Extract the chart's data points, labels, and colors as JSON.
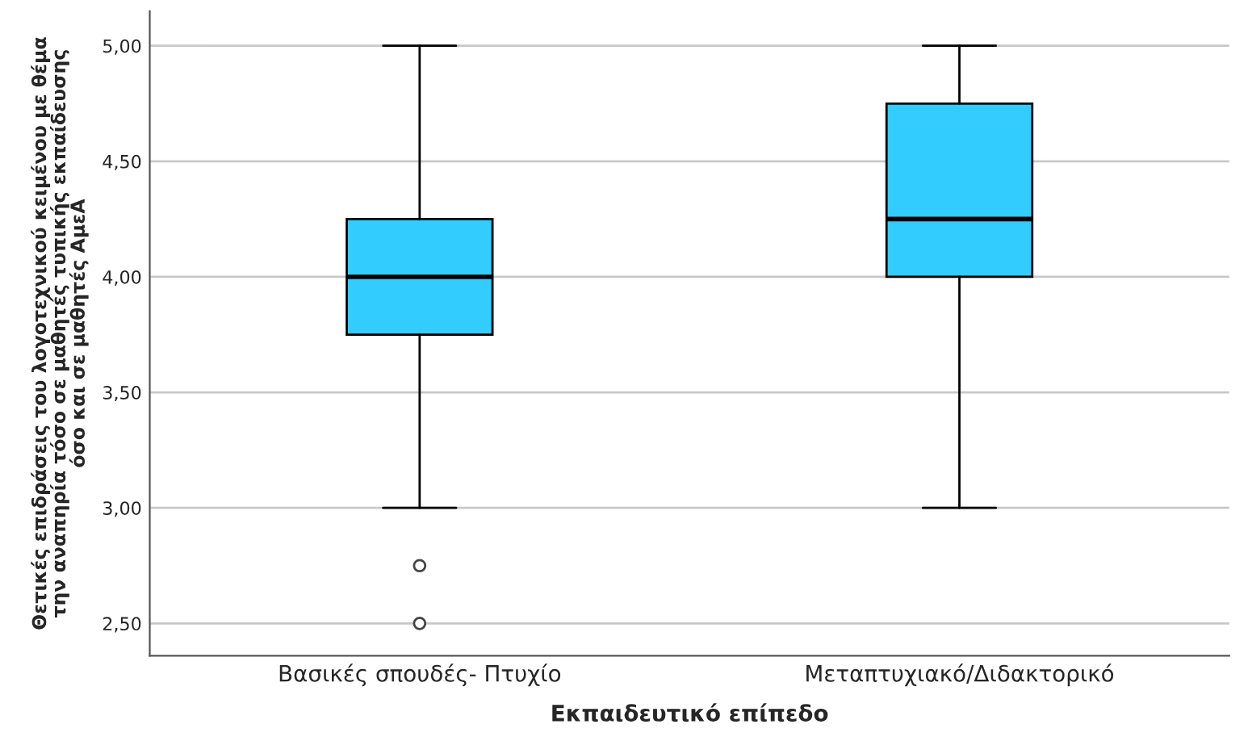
{
  "chart_data": {
    "type": "box",
    "xlabel": "Εκπαιδευτικό επίπεδο",
    "ylabel": "Θετικές επιδράσεις του λογοτεχνικού κειμένου με θέμα\nτην αναπηρία τόσο σε μαθητές τυπικής εκπαίδευσης\nόσο και σε μαθητές ΑμεΑ",
    "categories": [
      "Βασικές σπουδές- Πτυχίο",
      "Μεταπτυχιακό/Διδακτορικό"
    ],
    "color": "#33ccff",
    "boxes": [
      {
        "low": 3.0,
        "q1": 3.75,
        "median": 4.0,
        "q3": 4.25,
        "high": 5.0,
        "outliers": [
          2.75,
          2.5
        ]
      },
      {
        "low": 3.0,
        "q1": 4.0,
        "median": 4.25,
        "q3": 4.75,
        "high": 5.0
      }
    ],
    "ylim": [
      2.36,
      5.15
    ],
    "yticks": [
      {
        "value": 2.5,
        "label": "2,50"
      },
      {
        "value": 3.0,
        "label": "3,00"
      },
      {
        "value": 3.5,
        "label": "3,50"
      },
      {
        "value": 4.0,
        "label": "4,00"
      },
      {
        "value": 4.5,
        "label": "4,50"
      },
      {
        "value": 5.0,
        "label": "5,00"
      }
    ],
    "grid": "y"
  }
}
